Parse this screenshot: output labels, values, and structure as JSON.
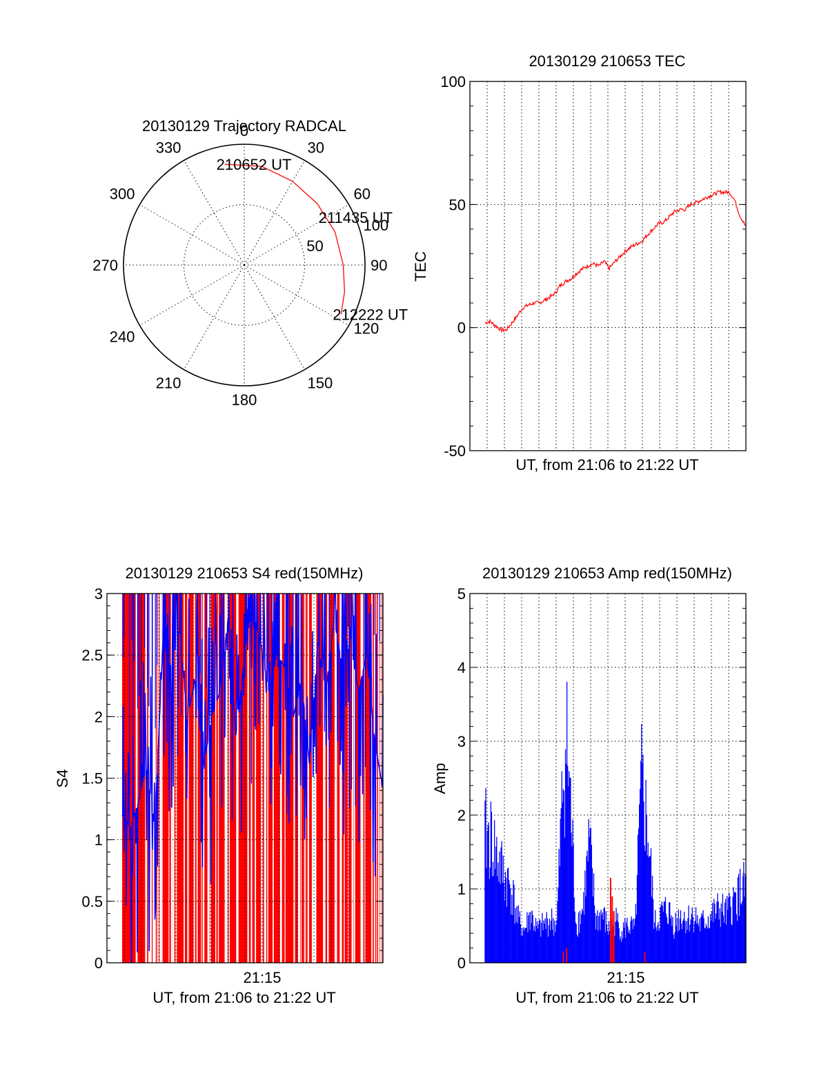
{
  "chart_data": [
    {
      "type": "polar",
      "title": "20130129 Trajectory RADCAL",
      "angular_ticks": [
        0,
        30,
        60,
        90,
        120,
        150,
        180,
        210,
        240,
        270,
        300,
        330
      ],
      "radial_ticks": [
        50,
        100
      ],
      "radial_range": [
        0,
        100
      ],
      "series": [
        {
          "color": "#ff0000",
          "points": [
            {
              "azimuth": 349,
              "zenith": 85
            },
            {
              "azimuth": 10,
              "zenith": 83
            },
            {
              "azimuth": 30,
              "zenith": 80
            },
            {
              "azimuth": 50,
              "zenith": 79
            },
            {
              "azimuth": 70,
              "zenith": 80
            },
            {
              "azimuth": 90,
              "zenith": 82
            },
            {
              "azimuth": 105,
              "zenith": 86
            },
            {
              "azimuth": 117,
              "zenith": 90
            }
          ]
        }
      ],
      "annotations": [
        {
          "text": "210652 UT",
          "azimuth": 349,
          "zenith": 85
        },
        {
          "text": "211435 UT",
          "azimuth": 60,
          "zenith": 79
        },
        {
          "text": "212222 UT",
          "azimuth": 117,
          "zenith": 90
        }
      ]
    },
    {
      "type": "line",
      "title": "20130129 210653 TEC",
      "xlabel": "UT, from 21:06 to 21:22 UT",
      "ylabel": "TEC",
      "xlim": [
        0,
        16
      ],
      "ylim": [
        -50,
        100
      ],
      "yticks": [
        -50,
        0,
        50,
        100
      ],
      "grid": true,
      "series": [
        {
          "color": "#ff0000",
          "x": [
            0,
            0.3,
            0.6,
            1.0,
            1.3,
            1.6,
            2.0,
            2.3,
            2.6,
            3.0,
            3.3,
            3.6,
            4.0,
            4.3,
            4.6,
            5.0,
            5.3,
            5.6,
            6.0,
            6.3,
            6.6,
            7.0,
            7.3,
            7.6,
            8.0,
            8.3,
            8.6,
            9.0,
            9.3,
            9.6,
            10.0,
            10.3,
            10.6,
            11.0,
            11.3,
            11.6,
            12.0,
            12.3,
            12.6,
            13.0,
            13.3,
            13.6,
            14.0,
            14.3,
            14.6,
            15.0,
            15.3,
            15.6,
            16.0
          ],
          "values": [
            2,
            2.5,
            1,
            -1,
            -1,
            1.5,
            5,
            8,
            9,
            10,
            10,
            11,
            12.5,
            14,
            17,
            19,
            20,
            22,
            24,
            25,
            26,
            25,
            27,
            24,
            27,
            29,
            31,
            33,
            34,
            35,
            38,
            40,
            42,
            43,
            45,
            47,
            48,
            48,
            50,
            51,
            52,
            53,
            54,
            55,
            55,
            55,
            52,
            46,
            41
          ]
        }
      ]
    },
    {
      "type": "bar",
      "title": "20130129 210653 S4 red(150MHz)",
      "xlabel": "UT, from 21:06 to 21:22 UT",
      "ylabel": "S4",
      "xlim": [
        0,
        16
      ],
      "ylim": [
        0,
        3
      ],
      "yticks": [
        0,
        0.5,
        1,
        1.5,
        2,
        2.5,
        3
      ],
      "xticks": [
        "21:15"
      ],
      "grid": true,
      "series": [
        {
          "color": "#ff0000",
          "note_values": "dense spikes reaching 3"
        },
        {
          "color": "#0000ff",
          "x": [
            0,
            0.5,
            1,
            1.5,
            2,
            2.5,
            3,
            3.5,
            4,
            4.5,
            5,
            5.5,
            6,
            6.5,
            7,
            7.5,
            8,
            8.5,
            9,
            9.5,
            10,
            10.5,
            11,
            11.5,
            12,
            12.5,
            13,
            13.5,
            14,
            14.5,
            15,
            15.5,
            16
          ],
          "values": [
            1.2,
            1.1,
            1.3,
            1.6,
            1.1,
            2.6,
            2.4,
            2.7,
            2.0,
            2.3,
            1.6,
            2.0,
            2.2,
            2.8,
            1.8,
            2.5,
            2.9,
            2.6,
            2.2,
            2.5,
            2.4,
            2.0,
            2.3,
            1.6,
            2.6,
            2.2,
            2.8,
            2.4,
            2.6,
            2.2,
            2.5,
            1.8,
            1.4
          ]
        }
      ]
    },
    {
      "type": "bar",
      "title": "20130129 210653 Amp red(150MHz)",
      "xlabel": "UT, from 21:06 to 21:22 UT",
      "ylabel": "Amp",
      "xlim": [
        0,
        16
      ],
      "ylim": [
        0,
        5
      ],
      "yticks": [
        0,
        1,
        2,
        3,
        4,
        5
      ],
      "xticks": [
        "21:15"
      ],
      "grid": true,
      "series": [
        {
          "color": "#0000ff",
          "x": [
            0,
            0.4,
            0.8,
            1.2,
            1.6,
            2.0,
            2.4,
            2.8,
            3.2,
            3.6,
            4.0,
            4.4,
            4.8,
            5.0,
            5.2,
            5.6,
            6.0,
            6.4,
            6.8,
            7.2,
            7.6,
            8.0,
            8.4,
            8.8,
            9.2,
            9.6,
            10.0,
            10.4,
            10.8,
            11.2,
            11.6,
            12.0,
            12.4,
            12.8,
            13.2,
            13.6,
            14.0,
            14.4,
            14.8,
            15.2,
            15.6,
            16.0
          ],
          "values": [
            2.4,
            2.3,
            1.9,
            1.6,
            1.4,
            0.8,
            0.6,
            0.9,
            0.6,
            0.7,
            0.8,
            0.7,
            3.5,
            4.1,
            3.2,
            0.7,
            1.0,
            2.2,
            0.8,
            0.9,
            0.6,
            0.8,
            0.6,
            0.7,
            0.6,
            3.3,
            2.4,
            0.7,
            0.9,
            1.0,
            0.7,
            0.9,
            0.8,
            0.9,
            0.7,
            0.8,
            0.9,
            1.0,
            0.9,
            1.1,
            1.3,
            1.4
          ]
        },
        {
          "color": "#ff0000",
          "x": [
            4.8,
            5.0,
            7.7,
            7.8,
            7.9,
            9.8
          ],
          "values": [
            0.15,
            0.2,
            1.15,
            0.9,
            0.7,
            0.15
          ]
        }
      ]
    }
  ]
}
